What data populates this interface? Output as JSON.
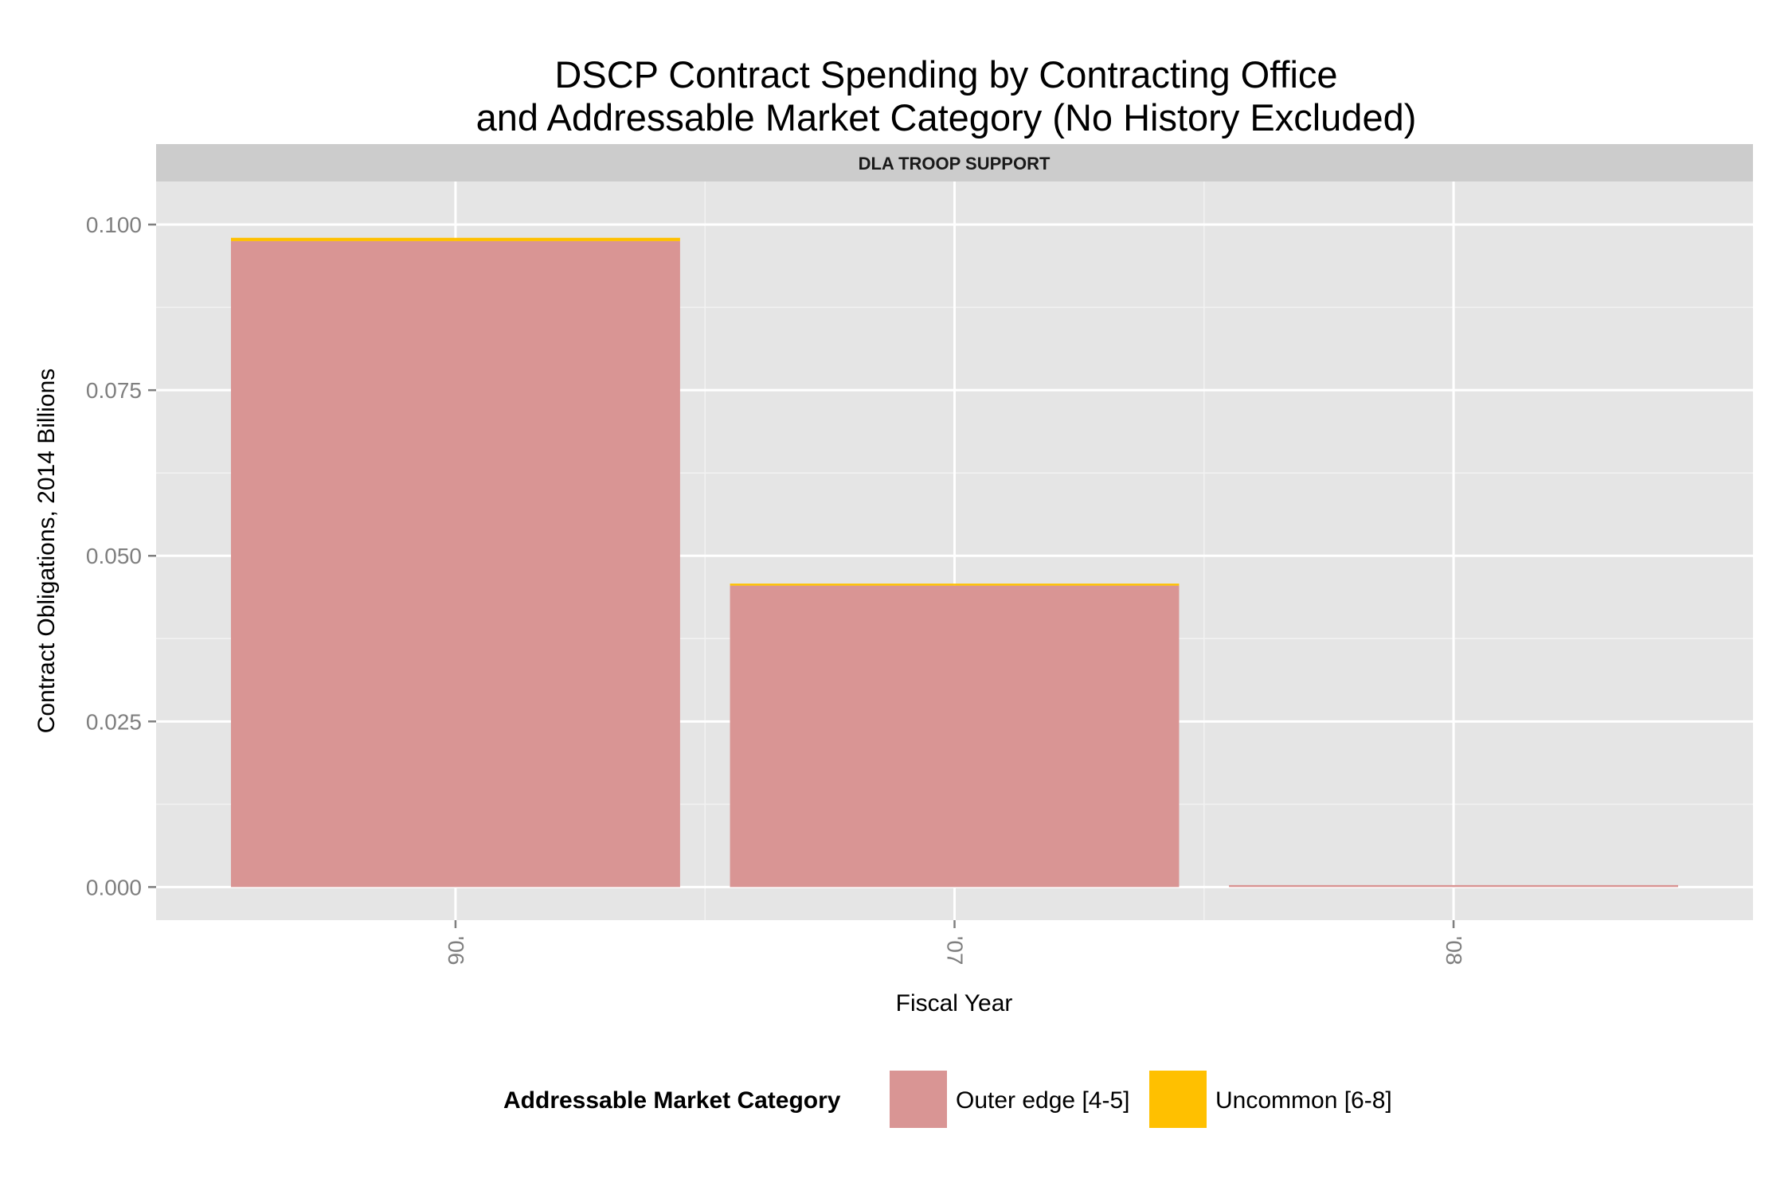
{
  "chart_data": {
    "type": "bar",
    "stacked": true,
    "title_line1": "DSCP Contract Spending by Contracting Office",
    "title_line2": "and Addressable Market Category (No History Excluded)",
    "facet_label": "DLA TROOP SUPPORT",
    "xlabel": "Fiscal Year",
    "ylabel": "Contract Obligations, 2014 Billions",
    "categories": [
      "'06",
      "'07",
      "'08"
    ],
    "ylim": [
      -0.005,
      0.1065
    ],
    "y_ticks": [
      0.0,
      0.025,
      0.05,
      0.075,
      0.1
    ],
    "y_tick_labels": [
      "0.000",
      "0.025",
      "0.050",
      "0.075",
      "0.100"
    ],
    "grid": true,
    "legend_position": "bottom",
    "legend_title": "Addressable Market Category",
    "series": [
      {
        "name": "Outer edge [4-5]",
        "color": "#d99594",
        "values": [
          0.0975,
          0.0455,
          0.0003
        ]
      },
      {
        "name": "Uncommon [6-8]",
        "color": "#ffc000",
        "values": [
          0.0005,
          0.0003,
          0.0
        ]
      }
    ],
    "panel_background": "#e5e5e5",
    "strip_background": "#cccccc"
  }
}
